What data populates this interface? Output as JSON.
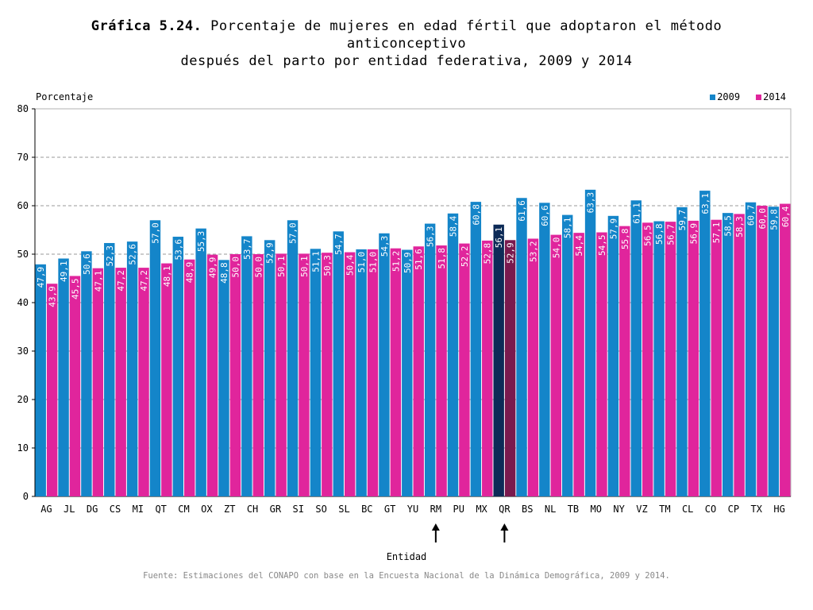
{
  "header": {
    "title_bold": "Gráfica 5.24.",
    "title_line1": "Porcentaje de mujeres en edad fértil que adoptaron el método",
    "title_line2": "anticonceptivo",
    "title_line3": "después del parto por entidad federativa,  2009 y 2014"
  },
  "source": "Fuente: Estimaciones del CONAPO con base en la Encuesta Nacional de la Dinámica Demográfica, 2009 y 2014.",
  "colors": {
    "series_2009": "#1485C9",
    "series_2014": "#E0259C",
    "highlight_2009": "#0D2B57",
    "highlight_2014": "#7A1A4E",
    "grid": "#999999",
    "arrow": "#000000"
  },
  "chart_data": {
    "type": "bar",
    "title": "Porcentaje de mujeres en edad fértil que adoptaron el método anticonceptivo después del parto por entidad federativa,  2009 y 2014",
    "ylabel": "Porcentaje",
    "xlabel": "Entidad",
    "ylim": [
      0,
      80
    ],
    "yticks": [
      0,
      10,
      20,
      30,
      40,
      50,
      60,
      70,
      80
    ],
    "grid": "dashed horizontal",
    "legend_position": "top-right",
    "categories": [
      "AG",
      "JL",
      "DG",
      "CS",
      "MI",
      "QT",
      "CM",
      "OX",
      "ZT",
      "CH",
      "GR",
      "SI",
      "SO",
      "SL",
      "BC",
      "GT",
      "YU",
      "RM",
      "PU",
      "MX",
      "QR",
      "BS",
      "NL",
      "TB",
      "MO",
      "NY",
      "VZ",
      "TM",
      "CL",
      "CO",
      "CP",
      "TX",
      "HG"
    ],
    "series": [
      {
        "name": "2009",
        "values": [
          47.9,
          49.1,
          50.6,
          52.3,
          52.6,
          57.0,
          53.6,
          55.3,
          48.8,
          53.7,
          52.9,
          57.0,
          51.1,
          54.7,
          51.0,
          54.3,
          50.9,
          56.3,
          58.4,
          60.8,
          56.1,
          61.6,
          60.6,
          58.1,
          63.3,
          57.9,
          61.1,
          56.8,
          59.7,
          63.1,
          58.5,
          60.7,
          59.8
        ]
      },
      {
        "name": "2014",
        "values": [
          43.9,
          45.5,
          47.1,
          47.2,
          47.2,
          48.1,
          48.9,
          49.9,
          50.0,
          50.0,
          50.1,
          50.1,
          50.3,
          50.4,
          51.0,
          51.2,
          51.6,
          51.8,
          52.2,
          52.8,
          52.9,
          53.2,
          54.0,
          54.4,
          54.5,
          55.8,
          56.5,
          56.7,
          56.9,
          57.1,
          58.3,
          60.0,
          60.4
        ]
      }
    ],
    "value_labels": {
      "2009": [
        "47,9",
        "49,1",
        "50,6",
        "52,3",
        "52,6",
        "57,0",
        "53,6",
        "55,3",
        "48,8",
        "53,7",
        "52,9",
        "57,0",
        "51,1",
        "54,7",
        "51,0",
        "54,3",
        "50,9",
        "56,3",
        "58,4",
        "60,8",
        "56,1",
        "61,6",
        "60,6",
        "58,1",
        "63,3",
        "57,9",
        "61,1",
        "56,8",
        "59,7",
        "63,1",
        "58,5",
        "60,7",
        "59,8"
      ],
      "2014": [
        "43,9",
        "45,5",
        "47,1",
        "47,2",
        "47,2",
        "48,1",
        "48,9",
        "49,9",
        "50,0",
        "50,0",
        "50,1",
        "50,1",
        "50,3",
        "50,4",
        "51,0",
        "51,2",
        "51,6",
        "51,8",
        "52,2",
        "52,8",
        "52,9",
        "53,2",
        "54,0",
        "54,4",
        "54,5",
        "55,8",
        "56,5",
        "56,7",
        "56,9",
        "57,1",
        "58,3",
        "60,0",
        "60,4"
      ]
    },
    "highlighted_categories": [
      "QR"
    ],
    "arrow_categories": [
      "RM",
      "QR"
    ]
  }
}
